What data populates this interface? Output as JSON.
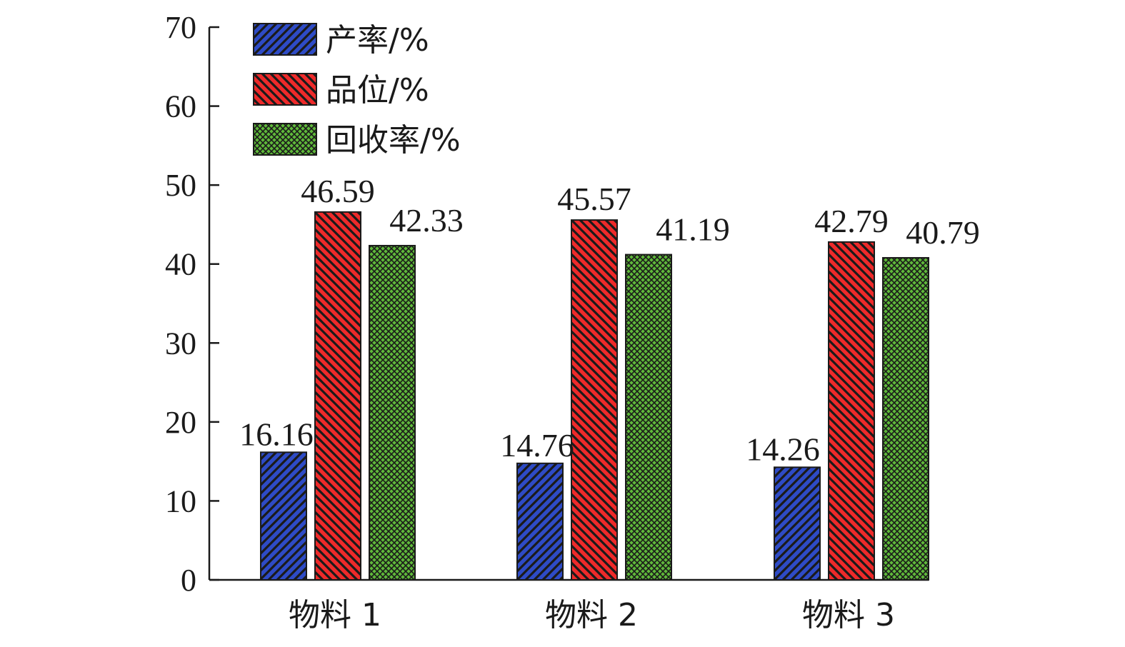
{
  "chart_data": {
    "type": "bar",
    "categories": [
      "物料 1",
      "物料 2",
      "物料 3"
    ],
    "series": [
      {
        "name": "产率/%",
        "values": [
          16.16,
          14.76,
          14.26
        ],
        "color": "#2e4bc6",
        "pattern": "diag-right"
      },
      {
        "name": "品位/%",
        "values": [
          46.59,
          45.57,
          42.79
        ],
        "color": "#ee2a2a",
        "pattern": "diag-left"
      },
      {
        "name": "回收率/%",
        "values": [
          42.33,
          41.19,
          40.79
        ],
        "color": "#5fb83a",
        "pattern": "cross-hatch"
      }
    ],
    "value_labels": [
      [
        "16.16",
        "46.59",
        "42.33"
      ],
      [
        "14.76",
        "45.57",
        "41.19"
      ],
      [
        "14.26",
        "42.79",
        "40.79"
      ]
    ],
    "ylim": [
      0,
      70
    ],
    "yticks": [
      "0",
      "10",
      "20",
      "30",
      "40",
      "50",
      "60",
      "70"
    ],
    "legend_position": "top-left",
    "grid": false,
    "title": "",
    "xlabel": "",
    "ylabel": ""
  }
}
